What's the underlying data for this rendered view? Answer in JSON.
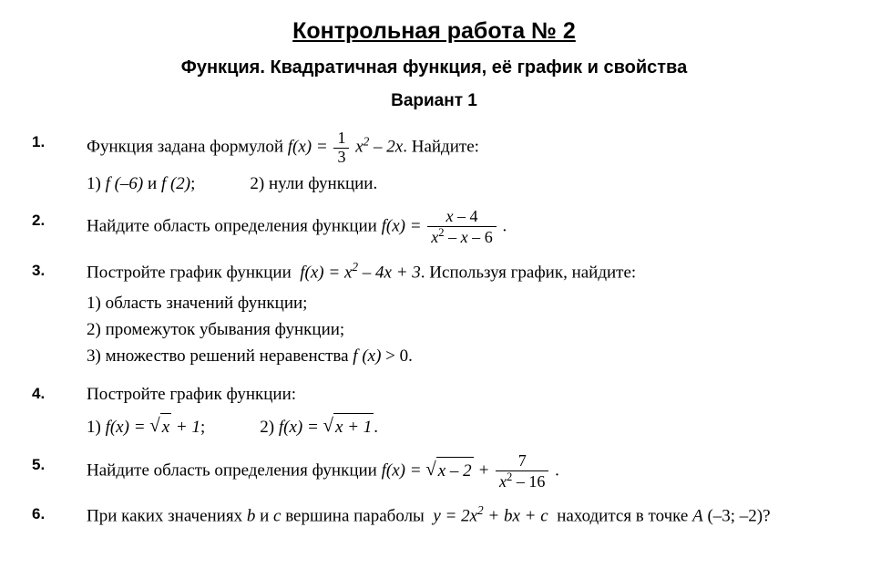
{
  "title": "Контрольная работа № 2",
  "subtitle": "Функция. Квадратичная функция, её график и свойства",
  "variant": "Вариант 1",
  "problems": {
    "p1": {
      "num": "1.",
      "intro_a": "Функция задана формулой ",
      "intro_b": ".  Найдите:",
      "sub1": "1) ",
      "sub1_f1": "f (–6)",
      "sub1_mid": " и ",
      "sub1_f2": "f (2)",
      "sub2": "2) нули функции."
    },
    "p2": {
      "num": "2.",
      "text": "Найдите область определения функции "
    },
    "p3": {
      "num": "3.",
      "intro_a": "Постройте график функции ",
      "intro_b": ". Используя график, найдите:",
      "sub1": "1) область значений функции;",
      "sub2": "2) промежуток убывания функции;",
      "sub3_a": "3) множество решений неравенства ",
      "sub3_b": " > 0."
    },
    "p4": {
      "num": "4.",
      "intro": "Постройте график функции:",
      "sub1": "1)  ",
      "sub2": "2)  "
    },
    "p5": {
      "num": "5.",
      "text": "Найдите область определения функции "
    },
    "p6": {
      "num": "6.",
      "text_a": "При каких значениях ",
      "text_b": " и ",
      "text_c": " вершина параболы ",
      "text_d": "находится в точке ",
      "text_e": " (–3; –2)?"
    }
  },
  "colors": {
    "text": "#000000",
    "background": "#ffffff"
  },
  "typography": {
    "title_fontsize": 25,
    "subtitle_fontsize": 20,
    "body_fontsize": 19
  }
}
